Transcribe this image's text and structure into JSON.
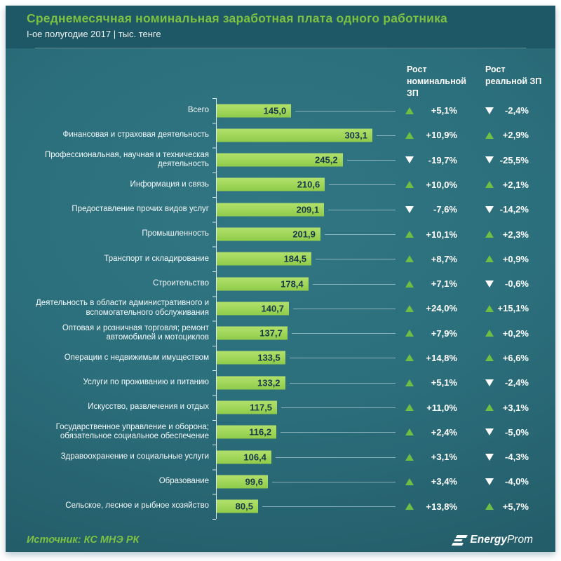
{
  "header": {
    "title": "Среднемесячная  номинальная заработная плата одного работника",
    "subtitle": "I-ое полугодие 2017 | тыс. тенге"
  },
  "columns": {
    "nominal": "Рост номинальной ЗП",
    "real": "Рост реальной ЗП"
  },
  "chart_data": {
    "type": "bar",
    "orientation": "horizontal",
    "title": "Среднемесячная номинальная заработная плата одного работника",
    "subtitle": "I-ое полугодие 2017",
    "unit": "тыс. тенге",
    "xlim": [
      0,
      310
    ],
    "grid": false,
    "categories": [
      "Всего",
      "Финансовая и страховая деятельность",
      "Профессиональная, научная и техническая деятельность",
      "Информация и связь",
      "Предоставление прочих видов услуг",
      "Промышленность",
      "Транспорт и складирование",
      "Строительство",
      "Деятельность в области административного и вспомогательного обслуживания",
      "Оптовая и розничная торговля; ремонт автомобилей и мотоциклов",
      "Операции с недвижимым имуществом",
      "Услуги по проживанию и питанию",
      "Искусство, развлечения и отдых",
      "Государственное управление и оборона; обязательное  социальное обеспечение",
      "Здравоохранение и социальные услуги",
      "Образование",
      "Сельское, лесное и рыбное хозяйство"
    ],
    "values": [
      145.0,
      303.1,
      245.2,
      210.6,
      209.1,
      201.9,
      184.5,
      178.4,
      140.7,
      137.7,
      133.5,
      133.2,
      117.5,
      116.2,
      106.4,
      99.6,
      80.5
    ],
    "value_labels": [
      "145,0",
      "303,1",
      "245,2",
      "210,6",
      "209,1",
      "201,9",
      "184,5",
      "178,4",
      "140,7",
      "137,7",
      "133,5",
      "133,2",
      "117,5",
      "116,2",
      "106,4",
      "99,6",
      "80,5"
    ],
    "series": [
      {
        "name": "Рост номинальной ЗП",
        "values": [
          5.1,
          10.9,
          -19.7,
          10.0,
          -7.6,
          10.1,
          8.7,
          7.1,
          24.0,
          7.9,
          14.8,
          5.1,
          11.0,
          2.4,
          3.1,
          3.4,
          13.8
        ],
        "labels": [
          "+5,1%",
          "+10,9%",
          "-19,7%",
          "+10,0%",
          "-7,6%",
          "+10,1%",
          "+8,7%",
          "+7,1%",
          "+24,0%",
          "+7,9%",
          "+14,8%",
          "+5,1%",
          "+11,0%",
          "+2,4%",
          "+3,1%",
          "+3,4%",
          "+13,8%"
        ]
      },
      {
        "name": "Рост реальной ЗП",
        "values": [
          -2.4,
          2.9,
          -25.5,
          2.1,
          -14.2,
          2.3,
          0.9,
          -0.6,
          15.1,
          0.2,
          6.6,
          -2.4,
          3.1,
          -5.0,
          -4.3,
          -4.0,
          5.7
        ],
        "labels": [
          "-2,4%",
          "+2,9%",
          "-25,5%",
          "+2,1%",
          "-14,2%",
          "+2,3%",
          "+0,9%",
          "-0,6%",
          "+15,1%",
          "+0,2%",
          "+6,6%",
          "-2,4%",
          "+3,1%",
          "-5,0%",
          "-4,3%",
          "-4,0%",
          "+5,7%"
        ]
      }
    ],
    "legend_position": "top-right-columns"
  },
  "footer": {
    "source": "Источник: КС МНЭ РК",
    "logo_bold": "Energy",
    "logo_light": "Prom"
  },
  "icons": {
    "up_triangle": "up-triangle-icon",
    "down_triangle": "down-triangle-icon",
    "logo_mark": "energyprom-icon"
  },
  "colors": {
    "card_header_bg": "#1e5765",
    "main_bg": "#2c6f7c",
    "title_green": "#7cc142",
    "bar_green": "#9fd659",
    "bar_value_text": "#17374b",
    "up_triangle": "#6fbf44",
    "down_triangle": "#ffffff",
    "text_white": "#ffffff"
  }
}
